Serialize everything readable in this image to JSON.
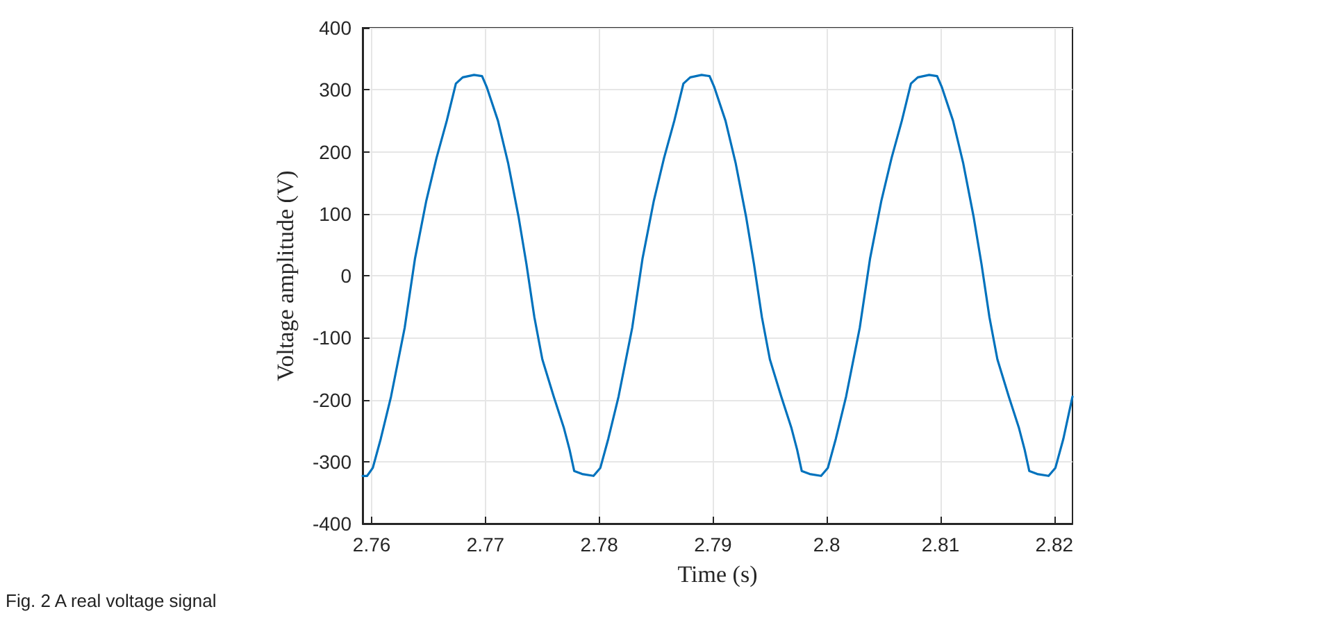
{
  "chart_data": {
    "type": "line",
    "xlabel": "Time (s)",
    "ylabel": "Voltage amplitude (V)",
    "annotations": [
      "Fig. 2 A real voltage signal"
    ],
    "x": [
      2.7592,
      2.7596,
      2.7601,
      2.7608,
      2.7617,
      2.7629,
      2.7638,
      2.7648,
      2.7657,
      2.7666,
      2.7674,
      2.768,
      2.769,
      2.7697,
      2.7701,
      2.7711,
      2.772,
      2.7729,
      2.7736,
      2.7743,
      2.775,
      2.776,
      2.7769,
      2.7774,
      2.7778,
      2.7785,
      2.7795,
      2.7801,
      2.7808,
      2.7817,
      2.7829,
      2.7838,
      2.7848,
      2.7857,
      2.7866,
      2.7874,
      2.788,
      2.789,
      2.7897,
      2.7901,
      2.7911,
      2.792,
      2.7929,
      2.7936,
      2.7943,
      2.795,
      2.796,
      2.7969,
      2.7974,
      2.7978,
      2.7985,
      2.7995,
      2.8001,
      2.8008,
      2.8017,
      2.8029,
      2.8038,
      2.8048,
      2.8057,
      2.8066,
      2.8074,
      2.808,
      2.809,
      2.8097,
      2.8101,
      2.8111,
      2.812,
      2.8129,
      2.8136,
      2.8143,
      2.815,
      2.816,
      2.8169,
      2.8174,
      2.8178,
      2.8185,
      2.8195,
      2.8201,
      2.8208,
      2.8216
    ],
    "series": [
      {
        "color": "#0072bd",
        "values": [
          -323,
          -323,
          -310,
          -263,
          -195,
          -84,
          27,
          121,
          190,
          250,
          310,
          320,
          324,
          322,
          305,
          250,
          181,
          96,
          19,
          -67,
          -135,
          -195,
          -246,
          -281,
          -315,
          -320,
          -323,
          -310,
          -263,
          -195,
          -84,
          27,
          121,
          190,
          250,
          310,
          320,
          324,
          322,
          305,
          250,
          181,
          96,
          19,
          -67,
          -135,
          -195,
          -246,
          -281,
          -315,
          -320,
          -323,
          -310,
          -263,
          -195,
          -84,
          27,
          121,
          190,
          250,
          310,
          320,
          324,
          322,
          305,
          250,
          181,
          96,
          19,
          -67,
          -135,
          -195,
          -246,
          -281,
          -315,
          -320,
          -323,
          -310,
          -263,
          -195
        ]
      }
    ],
    "xlim": [
      2.7592,
      2.8216
    ],
    "xticks": [
      2.76,
      2.77,
      2.78,
      2.79,
      2.8,
      2.81,
      2.82
    ],
    "ylim": [
      -400,
      400
    ],
    "yticks": [
      -400,
      -300,
      -200,
      -100,
      0,
      100,
      200,
      300,
      400
    ],
    "grid": true,
    "marker": "none",
    "line_style": "solid"
  }
}
